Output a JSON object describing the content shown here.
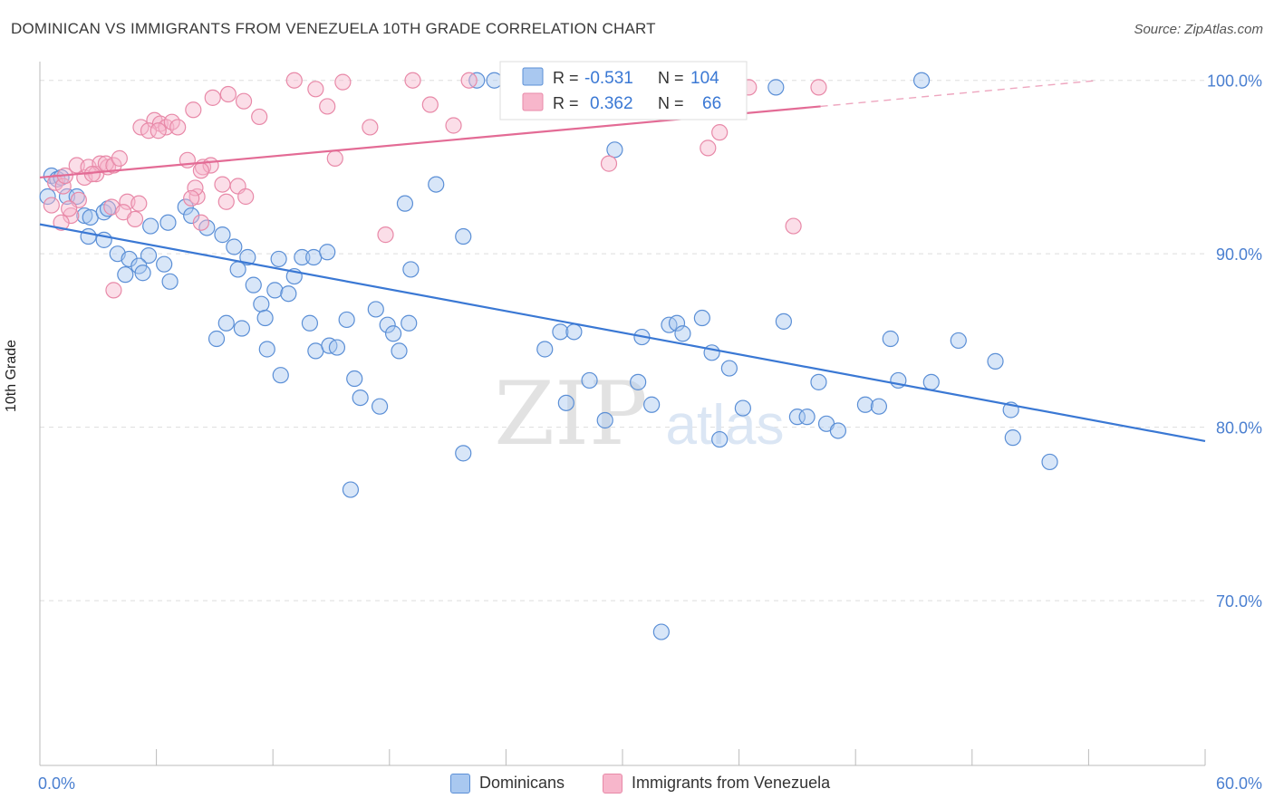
{
  "title": "DOMINICAN VS IMMIGRANTS FROM VENEZUELA 10TH GRADE CORRELATION CHART",
  "source": "Source: ZipAtlas.com",
  "watermark": {
    "zip": "ZIP",
    "atlas": "atlas"
  },
  "colors": {
    "blue_fill": "#a9c8f0",
    "blue_stroke": "#5b8fd6",
    "blue_line": "#3a78d4",
    "pink_fill": "#f7b6cb",
    "pink_stroke": "#e889a8",
    "pink_line": "#e36b95",
    "tick_text": "#4a7fd0",
    "grid": "#dddddd"
  },
  "stats_legend": {
    "rows": [
      {
        "r_label": "R =",
        "r_value": "-0.531",
        "n_label": "N =",
        "n_value": "104",
        "color": "blue"
      },
      {
        "r_label": "R =",
        "r_value": "0.362",
        "n_label": "N =",
        "n_value": "66",
        "color": "pink"
      }
    ]
  },
  "chart_data": {
    "type": "scatter",
    "title": "DOMINICAN VS IMMIGRANTS FROM VENEZUELA 10TH GRADE CORRELATION CHART",
    "xlabel": "",
    "ylabel": "10th Grade",
    "xlim": [
      0,
      60
    ],
    "ylim": [
      60.5,
      101.5
    ],
    "x_tick_labels": [
      {
        "value": 0,
        "label": "0.0%"
      },
      {
        "value": 60,
        "label": "60.0%"
      }
    ],
    "y_tick_labels": [
      {
        "value": 70,
        "label": "70.0%"
      },
      {
        "value": 80,
        "label": "80.0%"
      },
      {
        "value": 90,
        "label": "90.0%"
      },
      {
        "value": 100,
        "label": "100.0%"
      }
    ],
    "grid": true,
    "legend_position": "bottom",
    "series": [
      {
        "name": "Dominicans",
        "color": "blue",
        "trend": {
          "x0": 0,
          "y0": 91.7,
          "x1": 60,
          "y1": 79.2,
          "dashed_to": null
        },
        "points": [
          [
            0.6,
            94.5
          ],
          [
            0.9,
            94.3
          ],
          [
            1.1,
            94.4
          ],
          [
            0.4,
            93.3
          ],
          [
            1.4,
            93.3
          ],
          [
            1.9,
            93.3
          ],
          [
            2.3,
            92.2
          ],
          [
            2.6,
            92.1
          ],
          [
            3.3,
            92.4
          ],
          [
            3.5,
            92.6
          ],
          [
            2.5,
            91.0
          ],
          [
            3.3,
            90.8
          ],
          [
            4.0,
            90.0
          ],
          [
            4.6,
            89.7
          ],
          [
            5.6,
            89.9
          ],
          [
            6.4,
            89.4
          ],
          [
            6.7,
            88.4
          ],
          [
            5.1,
            89.3
          ],
          [
            4.4,
            88.8
          ],
          [
            5.3,
            88.9
          ],
          [
            5.7,
            91.6
          ],
          [
            6.6,
            91.8
          ],
          [
            7.5,
            92.7
          ],
          [
            7.8,
            92.2
          ],
          [
            8.6,
            91.5
          ],
          [
            9.4,
            91.1
          ],
          [
            10.0,
            90.4
          ],
          [
            10.7,
            89.8
          ],
          [
            10.2,
            89.1
          ],
          [
            11.0,
            88.2
          ],
          [
            12.3,
            89.7
          ],
          [
            13.5,
            89.8
          ],
          [
            14.1,
            89.8
          ],
          [
            14.8,
            90.1
          ],
          [
            11.4,
            87.1
          ],
          [
            12.1,
            87.9
          ],
          [
            12.8,
            87.7
          ],
          [
            13.1,
            88.7
          ],
          [
            13.9,
            86.0
          ],
          [
            11.6,
            86.3
          ],
          [
            10.4,
            85.7
          ],
          [
            9.6,
            86.0
          ],
          [
            9.1,
            85.1
          ],
          [
            11.7,
            84.5
          ],
          [
            12.4,
            83.0
          ],
          [
            14.2,
            84.4
          ],
          [
            14.9,
            84.7
          ],
          [
            15.3,
            84.6
          ],
          [
            15.8,
            86.2
          ],
          [
            16.2,
            82.8
          ],
          [
            16.5,
            81.7
          ],
          [
            17.5,
            81.2
          ],
          [
            17.3,
            86.8
          ],
          [
            17.9,
            85.9
          ],
          [
            18.2,
            85.4
          ],
          [
            18.5,
            84.4
          ],
          [
            19.0,
            86.0
          ],
          [
            19.1,
            89.1
          ],
          [
            20.4,
            94.0
          ],
          [
            18.8,
            92.9
          ],
          [
            21.8,
            91.0
          ],
          [
            22.5,
            100.0
          ],
          [
            23.4,
            100.0
          ],
          [
            24.9,
            100.0
          ],
          [
            26.0,
            84.5
          ],
          [
            26.8,
            85.5
          ],
          [
            27.5,
            85.5
          ],
          [
            27.1,
            81.4
          ],
          [
            28.3,
            82.7
          ],
          [
            29.1,
            80.4
          ],
          [
            29.6,
            96.0
          ],
          [
            30.8,
            82.6
          ],
          [
            31.0,
            85.2
          ],
          [
            31.5,
            81.3
          ],
          [
            32.4,
            85.9
          ],
          [
            32.8,
            86.0
          ],
          [
            33.1,
            85.4
          ],
          [
            34.1,
            86.3
          ],
          [
            34.6,
            84.3
          ],
          [
            35.5,
            83.4
          ],
          [
            35.0,
            79.3
          ],
          [
            36.2,
            81.1
          ],
          [
            38.3,
            86.1
          ],
          [
            39.0,
            80.6
          ],
          [
            39.5,
            80.6
          ],
          [
            40.1,
            82.6
          ],
          [
            40.5,
            80.2
          ],
          [
            41.1,
            79.8
          ],
          [
            42.5,
            81.3
          ],
          [
            43.2,
            81.2
          ],
          [
            43.8,
            85.1
          ],
          [
            44.2,
            82.7
          ],
          [
            45.9,
            82.6
          ],
          [
            47.3,
            85.0
          ],
          [
            49.2,
            83.8
          ],
          [
            50.0,
            81.0
          ],
          [
            50.1,
            79.4
          ],
          [
            52.0,
            78.0
          ],
          [
            21.8,
            78.5
          ],
          [
            32.0,
            68.2
          ],
          [
            25.6,
            99.9
          ],
          [
            45.4,
            100.0
          ],
          [
            37.9,
            99.6
          ],
          [
            16.0,
            76.4
          ]
        ]
      },
      {
        "name": "Immigrants from Venezuela",
        "color": "pink",
        "trend": {
          "x0": 0,
          "y0": 94.4,
          "x1": 40.2,
          "y1": 98.5,
          "dashed_to": [
            54.5,
            100.0
          ]
        },
        "points": [
          [
            0.6,
            92.8
          ],
          [
            0.8,
            94.1
          ],
          [
            1.2,
            93.9
          ],
          [
            1.6,
            92.2
          ],
          [
            2.0,
            93.1
          ],
          [
            2.3,
            94.4
          ],
          [
            1.9,
            95.1
          ],
          [
            2.5,
            95.0
          ],
          [
            1.1,
            91.8
          ],
          [
            2.9,
            94.6
          ],
          [
            3.1,
            95.2
          ],
          [
            3.5,
            95.0
          ],
          [
            3.4,
            95.2
          ],
          [
            3.8,
            95.1
          ],
          [
            4.1,
            95.5
          ],
          [
            3.7,
            92.7
          ],
          [
            4.5,
            93.0
          ],
          [
            4.3,
            92.4
          ],
          [
            5.1,
            92.9
          ],
          [
            4.9,
            92.0
          ],
          [
            5.2,
            97.3
          ],
          [
            5.9,
            97.7
          ],
          [
            6.2,
            97.5
          ],
          [
            6.5,
            97.3
          ],
          [
            6.8,
            97.6
          ],
          [
            7.1,
            97.3
          ],
          [
            5.6,
            97.1
          ],
          [
            6.1,
            97.1
          ],
          [
            7.6,
            95.4
          ],
          [
            8.1,
            93.3
          ],
          [
            8.4,
            95.0
          ],
          [
            8.8,
            95.1
          ],
          [
            9.4,
            94.0
          ],
          [
            8.0,
            93.8
          ],
          [
            8.3,
            91.8
          ],
          [
            7.8,
            93.2
          ],
          [
            9.6,
            93.0
          ],
          [
            10.2,
            93.9
          ],
          [
            10.6,
            93.3
          ],
          [
            8.9,
            99.0
          ],
          [
            9.7,
            99.2
          ],
          [
            10.5,
            98.8
          ],
          [
            11.3,
            97.9
          ],
          [
            13.1,
            100.0
          ],
          [
            14.2,
            99.5
          ],
          [
            15.6,
            99.9
          ],
          [
            14.8,
            98.5
          ],
          [
            15.2,
            95.5
          ],
          [
            17.0,
            97.3
          ],
          [
            17.8,
            91.1
          ],
          [
            19.2,
            100.0
          ],
          [
            20.1,
            98.6
          ],
          [
            21.3,
            97.4
          ],
          [
            22.1,
            100.0
          ],
          [
            7.9,
            98.3
          ],
          [
            8.3,
            94.8
          ],
          [
            1.5,
            92.6
          ],
          [
            1.3,
            94.5
          ],
          [
            2.7,
            94.6
          ],
          [
            3.8,
            87.9
          ],
          [
            34.4,
            96.1
          ],
          [
            35.0,
            97.0
          ],
          [
            36.5,
            99.6
          ],
          [
            29.3,
            95.2
          ],
          [
            38.8,
            91.6
          ],
          [
            40.1,
            99.6
          ]
        ]
      }
    ]
  },
  "bottom_legend": [
    {
      "label": "Dominicans",
      "color": "blue"
    },
    {
      "label": "Immigrants from Venezuela",
      "color": "pink"
    }
  ]
}
